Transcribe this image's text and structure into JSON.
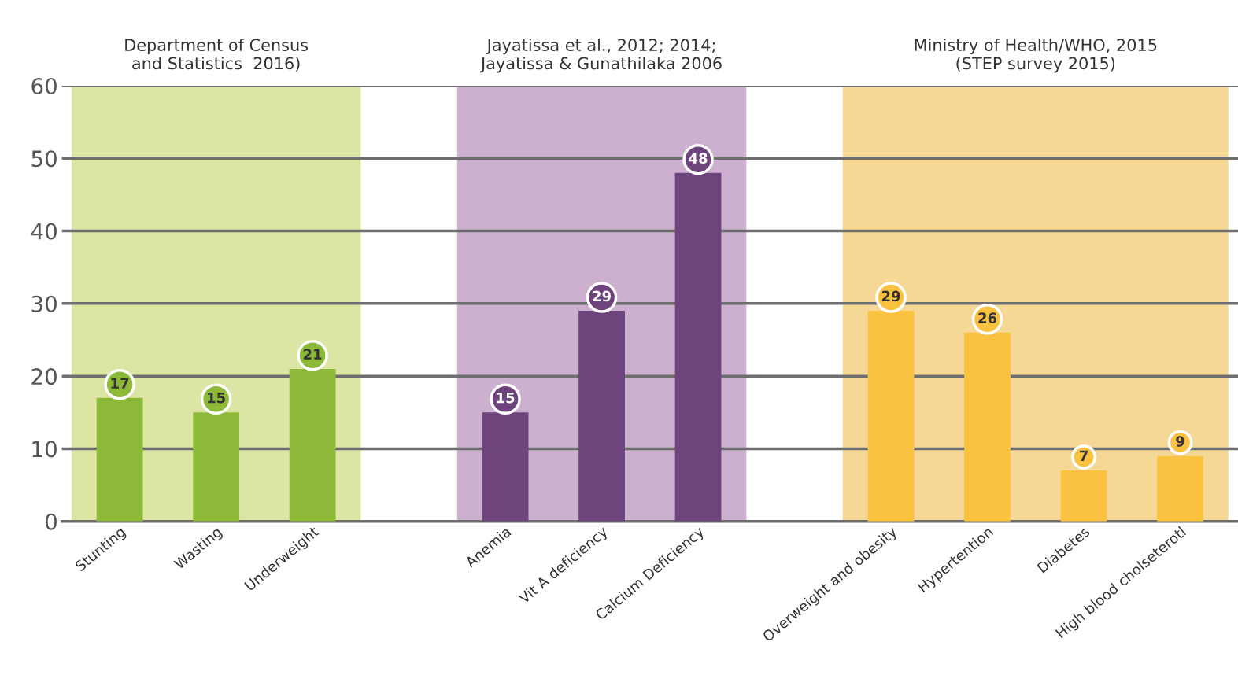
{
  "chart_data": {
    "type": "bar",
    "categories": [
      "Stunting",
      "Wasting",
      "Underweight",
      null,
      "Anemia",
      "Vit A deficiency",
      "Calcium Deficiency",
      null,
      "Overweight and obesity",
      "Hypertention",
      "Diabetes",
      "High blood cholseterotl"
    ],
    "values": [
      17,
      15,
      21,
      null,
      15,
      29,
      48,
      null,
      29,
      26,
      7,
      9
    ],
    "colors": [
      "#8cba38",
      "#8cba38",
      "#8cba38",
      null,
      "#6d447c",
      "#6d447c",
      "#6d447c",
      null,
      "#fbc241",
      "#fbc241",
      "#fbc241",
      "#fbc241"
    ],
    "data_labels": true,
    "ylim": [
      0,
      60
    ],
    "yticks": [
      0,
      10,
      20,
      30,
      40,
      50,
      60
    ],
    "grid": "y",
    "legend": false,
    "bands": [
      {
        "axis": "x",
        "from": "Stunting",
        "to": "Underweight",
        "label": "Department of Census\nand Statistics  2016)",
        "color": "#dce5a4"
      },
      {
        "axis": "x",
        "from": "Anemia",
        "to": "Calcium Deficiency",
        "label": "Jayatissa et al., 2012; 2014;\nJayatissa & Gunathilaka 2006",
        "color": "#cdafd0"
      },
      {
        "axis": "x",
        "from": "Overweight and obesity",
        "to": "High blood cholseterotl",
        "label": "Ministry of Health/WHO, 2015\n(STEP survey 2015)",
        "color": "#f6d896"
      }
    ]
  }
}
